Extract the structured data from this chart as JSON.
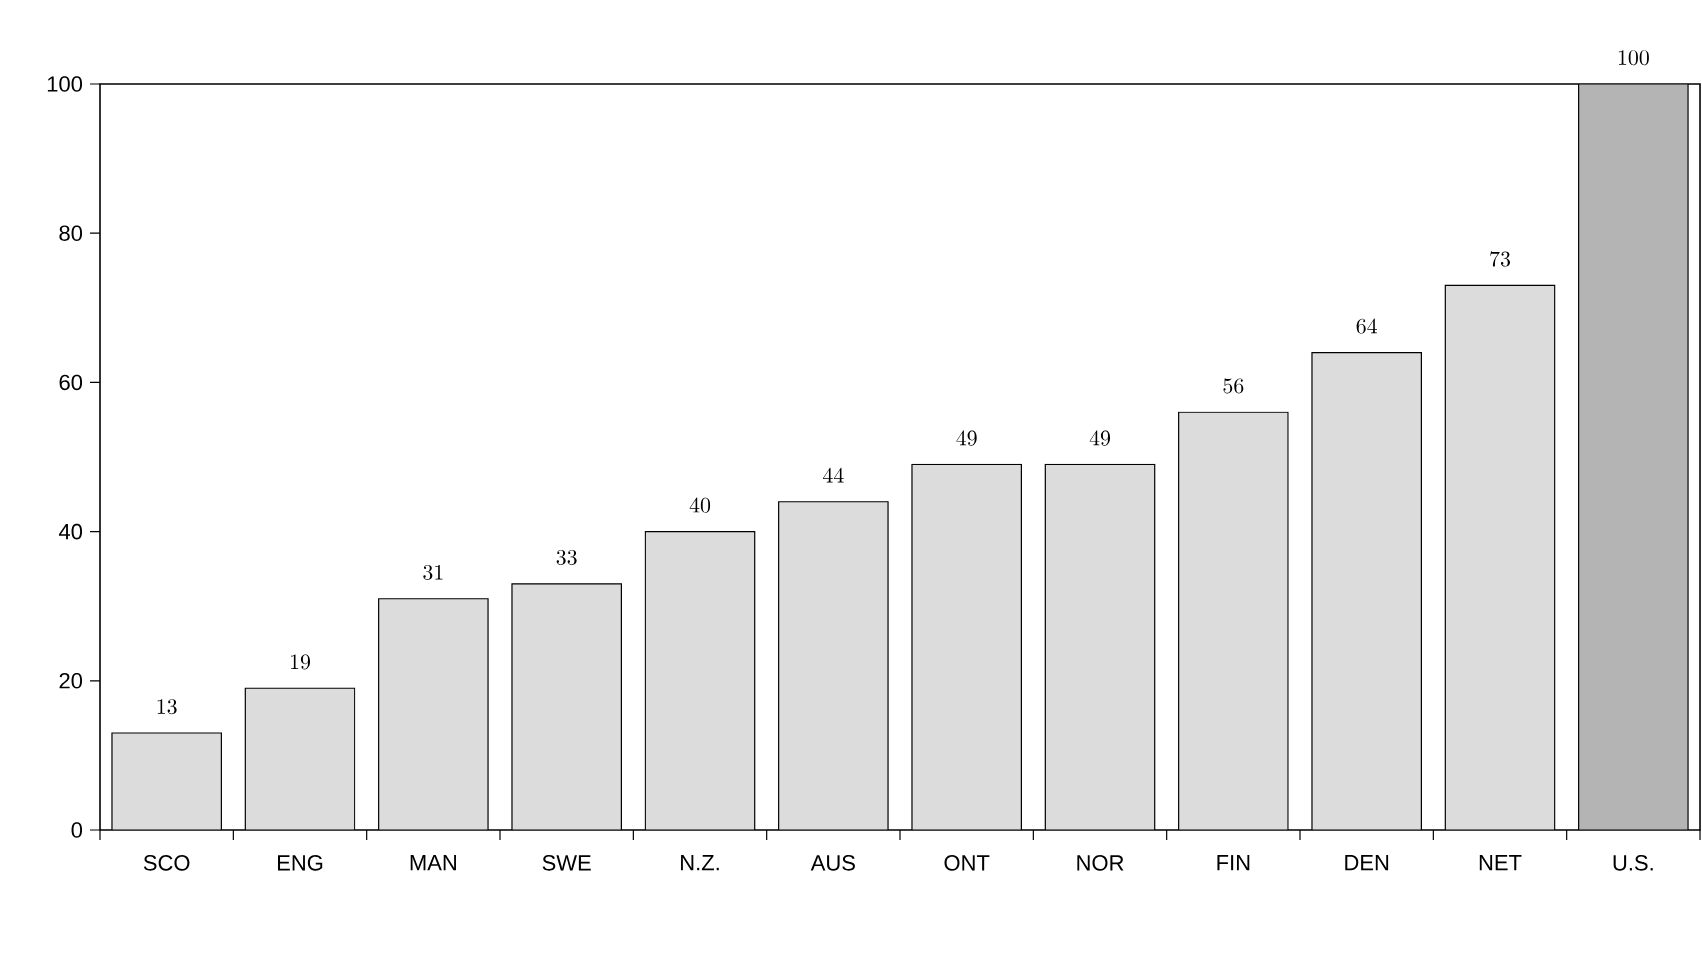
{
  "chart_data": {
    "type": "bar",
    "categories": [
      "SCO",
      "ENG",
      "MAN",
      "SWE",
      "N.Z.",
      "AUS",
      "ONT",
      "NOR",
      "FIN",
      "DEN",
      "NET",
      "U.S."
    ],
    "values": [
      13,
      19,
      31,
      33,
      40,
      44,
      49,
      49,
      56,
      64,
      73,
      100
    ],
    "colors": [
      "#dcdcdc",
      "#dcdcdc",
      "#dcdcdc",
      "#dcdcdc",
      "#dcdcdc",
      "#dcdcdc",
      "#dcdcdc",
      "#dcdcdc",
      "#dcdcdc",
      "#dcdcdc",
      "#dcdcdc",
      "#b4b4b4"
    ],
    "ylim": [
      0,
      100
    ],
    "yticks": [
      0,
      20,
      40,
      60,
      80,
      100
    ],
    "data_labels": true
  }
}
